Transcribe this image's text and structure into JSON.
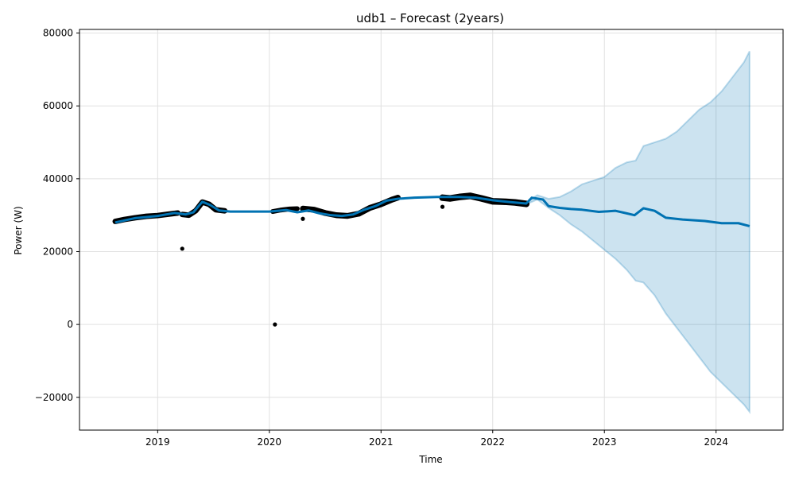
{
  "chart_data": {
    "type": "line",
    "title": "udb1 – Forecast (2years)",
    "xlabel": "Time",
    "ylabel": "Power (W)",
    "xlim": [
      2018.3,
      2024.6
    ],
    "ylim": [
      -29000,
      81000
    ],
    "x_ticks": [
      {
        "value": 2019,
        "label": "2019"
      },
      {
        "value": 2020,
        "label": "2020"
      },
      {
        "value": 2021,
        "label": "2021"
      },
      {
        "value": 2022,
        "label": "2022"
      },
      {
        "value": 2023,
        "label": "2023"
      },
      {
        "value": 2024,
        "label": "2024"
      }
    ],
    "y_ticks": [
      {
        "value": -20000,
        "label": "−20000"
      },
      {
        "value": 0,
        "label": "0"
      },
      {
        "value": 20000,
        "label": "20000"
      },
      {
        "value": 40000,
        "label": "40000"
      },
      {
        "value": 60000,
        "label": "60000"
      },
      {
        "value": 80000,
        "label": "80000"
      }
    ],
    "grid": true,
    "colors": {
      "observed": "#000000",
      "forecast": "#0072B2",
      "interval": "#0072B2"
    },
    "observed_segments": [
      {
        "x": [
          2018.62,
          2018.7,
          2018.8,
          2018.9,
          2019.0,
          2019.1,
          2019.18
        ],
        "center": [
          28300,
          28800,
          29300,
          29700,
          29900,
          30300,
          30600
        ],
        "spread": 1500
      },
      {
        "x": [
          2019.22,
          2019.28,
          2019.34,
          2019.4,
          2019.46,
          2019.52,
          2019.6
        ],
        "center": [
          30200,
          30000,
          31200,
          33600,
          33000,
          31500,
          31200
        ],
        "spread": 1500
      },
      {
        "x": [
          2020.03,
          2020.1,
          2020.18,
          2020.25
        ],
        "center": [
          31000,
          31400,
          31700,
          31800
        ],
        "spread": 1300
      },
      {
        "x": [
          2020.3,
          2020.4,
          2020.5,
          2020.6,
          2020.7,
          2020.8,
          2020.9,
          2021.0,
          2021.1,
          2021.15
        ],
        "center": [
          31800,
          31500,
          30600,
          30000,
          29800,
          30400,
          32000,
          33000,
          34300,
          34800
        ],
        "spread": 1600
      },
      {
        "x": [
          2021.55,
          2021.62,
          2021.7,
          2021.8,
          2021.9,
          2022.0,
          2022.1,
          2022.2,
          2022.3
        ],
        "center": [
          34800,
          34600,
          35000,
          35300,
          34600,
          33800,
          33700,
          33500,
          33100
        ],
        "spread": 1800
      }
    ],
    "outliers": [
      {
        "x": 2019.22,
        "y": 20800
      },
      {
        "x": 2020.05,
        "y": 0
      },
      {
        "x": 2020.3,
        "y": 29000
      },
      {
        "x": 2021.55,
        "y": 32300
      }
    ],
    "forecast": {
      "x": [
        2018.62,
        2018.8,
        2019.0,
        2019.15,
        2019.25,
        2019.32,
        2019.4,
        2019.47,
        2019.55,
        2019.65,
        2019.8,
        2020.0,
        2020.15,
        2020.25,
        2020.35,
        2020.45,
        2020.55,
        2020.65,
        2020.75,
        2020.85,
        2020.95,
        2021.05,
        2021.15,
        2021.3,
        2021.5,
        2021.7,
        2021.85,
        2022.0,
        2022.15,
        2022.3,
        2022.35,
        2022.45,
        2022.5,
        2022.6,
        2022.7,
        2022.8,
        2022.95,
        2023.1,
        2023.2,
        2023.27,
        2023.35,
        2023.45,
        2023.55,
        2023.7,
        2023.9,
        2024.05,
        2024.2,
        2024.3
      ],
      "y": [
        28000,
        29200,
        29800,
        30600,
        30200,
        30800,
        33700,
        32800,
        31300,
        31000,
        31000,
        31000,
        31400,
        30800,
        31300,
        30500,
        30000,
        29800,
        30200,
        31500,
        32500,
        34000,
        34500,
        34800,
        35000,
        35000,
        34800,
        34100,
        33600,
        33200,
        34800,
        34300,
        32500,
        32000,
        31700,
        31500,
        30900,
        31200,
        30500,
        30000,
        31900,
        31200,
        29300,
        28800,
        28400,
        27800,
        27800,
        27000
      ]
    },
    "interval": {
      "x": [
        2022.3,
        2022.4,
        2022.5,
        2022.6,
        2022.7,
        2022.8,
        2022.9,
        2023.0,
        2023.1,
        2023.2,
        2023.28,
        2023.35,
        2023.45,
        2023.55,
        2023.65,
        2023.75,
        2023.85,
        2023.95,
        2024.05,
        2024.15,
        2024.25,
        2024.3
      ],
      "upper": [
        33500,
        35500,
        34500,
        35000,
        36500,
        38500,
        39500,
        40500,
        43000,
        44500,
        45000,
        49000,
        50000,
        51000,
        53000,
        56000,
        59000,
        61000,
        64000,
        68000,
        72000,
        75000
      ],
      "lower": [
        33000,
        34300,
        32000,
        30000,
        27500,
        25500,
        23000,
        20500,
        18000,
        15000,
        12000,
        11500,
        8000,
        3000,
        -1000,
        -5000,
        -9000,
        -13000,
        -16000,
        -19000,
        -22000,
        -24000
      ]
    }
  }
}
